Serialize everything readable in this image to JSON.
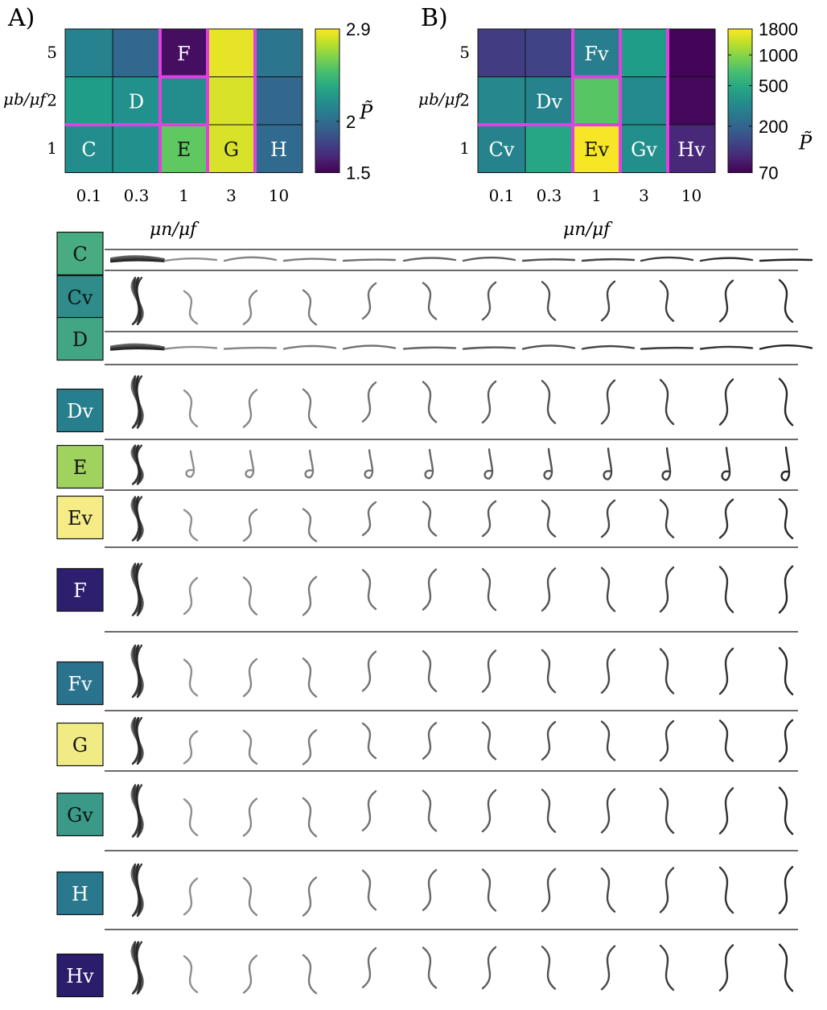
{
  "chart_data": [
    {
      "type": "heatmap",
      "panel_label": "A)",
      "xlabel": "μn/μf",
      "ylabel": "μb/μf",
      "x_categories": [
        "0.1",
        "0.3",
        "1",
        "3",
        "10"
      ],
      "y_categories": [
        "1",
        "2",
        "5"
      ],
      "colorbar": {
        "label": "P̃",
        "scale": "linear",
        "range": [
          1.5,
          2.9
        ],
        "ticks": [
          "1.5",
          "2",
          "2.9"
        ]
      },
      "values": [
        [
          2.18,
          2.2,
          2.55,
          2.82,
          1.98
        ],
        [
          2.27,
          2.2,
          2.18,
          2.82,
          1.96
        ],
        [
          2.12,
          1.96,
          1.55,
          2.85,
          2.05
        ]
      ],
      "cell_labels": [
        {
          "row": 0,
          "col": 0,
          "text": "C"
        },
        {
          "row": 1,
          "col": 1,
          "text": "D"
        },
        {
          "row": 0,
          "col": 2,
          "text": "E"
        },
        {
          "row": 2,
          "col": 2,
          "text": "F"
        },
        {
          "row": 0,
          "col": 3,
          "text": "G"
        },
        {
          "row": 0,
          "col": 4,
          "text": "H"
        }
      ]
    },
    {
      "type": "heatmap",
      "panel_label": "B)",
      "xlabel": "μn/μf",
      "ylabel": "μb/μf",
      "x_categories": [
        "0.1",
        "0.3",
        "1",
        "3",
        "10"
      ],
      "y_categories": [
        "1",
        "2",
        "5"
      ],
      "colorbar": {
        "label": "P̃",
        "scale": "log",
        "range": [
          70,
          1800
        ],
        "ticks": [
          "70",
          "200",
          "500",
          "1000",
          "1800"
        ]
      },
      "values": [
        [
          300,
          480,
          1750,
          350,
          100
        ],
        [
          320,
          300,
          760,
          330,
          75
        ],
        [
          125,
          135,
          280,
          420,
          72
        ]
      ],
      "cell_labels": [
        {
          "row": 0,
          "col": 0,
          "text": "Cv"
        },
        {
          "row": 1,
          "col": 1,
          "text": "Dv"
        },
        {
          "row": 0,
          "col": 2,
          "text": "Ev"
        },
        {
          "row": 2,
          "col": 2,
          "text": "Fv"
        },
        {
          "row": 0,
          "col": 3,
          "text": "Gv"
        },
        {
          "row": 0,
          "col": 4,
          "text": "Hv"
        }
      ]
    }
  ],
  "colors": {
    "C": "#49ab80",
    "Cv": "#2f8c8a",
    "D": "#42a583",
    "Dv": "#277f8e",
    "E": "#9fd35e",
    "Ev": "#f5ec88",
    "F": "#2e1e6e",
    "Fv": "#29738e",
    "G": "#f1eb86",
    "Gv": "#3a9a87",
    "H": "#2a788e",
    "Hv": "#2b1c6c",
    "highlight": "#e040e0"
  },
  "rows": [
    {
      "label": "C"
    },
    {
      "label": "Cv"
    },
    {
      "label": "D"
    },
    {
      "label": "Dv"
    },
    {
      "label": "E"
    },
    {
      "label": "Ev"
    },
    {
      "label": "F"
    },
    {
      "label": "Fv"
    },
    {
      "label": "G"
    },
    {
      "label": "Gv"
    },
    {
      "label": "H"
    },
    {
      "label": "Hv"
    }
  ]
}
